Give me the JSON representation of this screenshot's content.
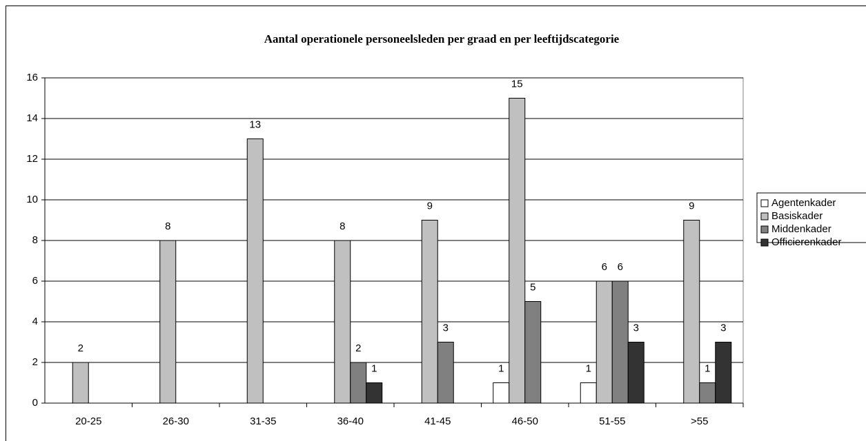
{
  "chart_data": {
    "type": "bar",
    "title": "Aantal operationele personeelsleden per graad en per leeftijdscategorie",
    "categories": [
      "20-25",
      "26-30",
      "31-35",
      "36-40",
      "41-45",
      "46-50",
      "51-55",
      ">55"
    ],
    "series": [
      {
        "name": "Agentenkader",
        "color": "#ffffff",
        "values": [
          0,
          0,
          0,
          0,
          0,
          1,
          1,
          0
        ]
      },
      {
        "name": "Basiskader",
        "color": "#c0c0c0",
        "values": [
          2,
          8,
          13,
          8,
          9,
          15,
          6,
          9
        ]
      },
      {
        "name": "Middenkader",
        "color": "#808080",
        "values": [
          0,
          0,
          0,
          2,
          3,
          5,
          6,
          1
        ]
      },
      {
        "name": "Officierenkader",
        "color": "#333333",
        "values": [
          0,
          0,
          0,
          1,
          0,
          0,
          3,
          3
        ]
      }
    ],
    "ylim": [
      0,
      16
    ],
    "yticks": [
      0,
      2,
      4,
      6,
      8,
      10,
      12,
      14,
      16
    ],
    "grid": true,
    "legend": "right"
  }
}
